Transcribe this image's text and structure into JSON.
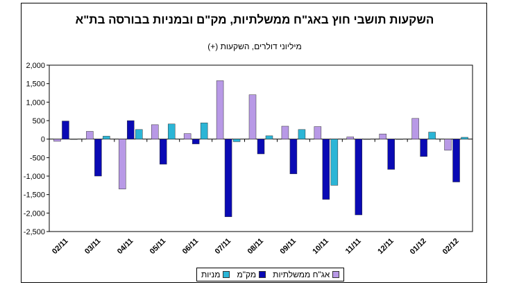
{
  "chart_data": {
    "type": "bar",
    "title": "השקעות תושבי חוץ באג\"ח ממשלתיות, מק\"ם ובמניות בבורסה בת\"א",
    "subtitle": "מיליוני דולרים, השקעות (+)",
    "categories": [
      "02/11",
      "03/11",
      "04/11",
      "05/11",
      "06/11",
      "07/11",
      "08/11",
      "09/11",
      "10/11",
      "11/11",
      "12/11",
      "01/12",
      "02/12"
    ],
    "series": [
      {
        "name": "אג\"ח ממשלתיות",
        "color": "#b899e6",
        "values": [
          -60,
          210,
          -1350,
          390,
          150,
          1580,
          1200,
          350,
          340,
          60,
          140,
          560,
          -300
        ]
      },
      {
        "name": "מק\"מ",
        "color": "#0a0ab4",
        "values": [
          490,
          -1000,
          500,
          -680,
          -130,
          -2100,
          -400,
          -940,
          -1630,
          -2050,
          -820,
          -470,
          -1160
        ]
      },
      {
        "name": "מניות",
        "color": "#2bb5d6",
        "values": [
          0,
          80,
          260,
          410,
          440,
          -70,
          90,
          260,
          -1250,
          0,
          0,
          190,
          50
        ]
      }
    ],
    "ylim": [
      -2500,
      2000
    ],
    "yticks": [
      "2,000",
      "1,500",
      "1,000",
      "500",
      "0",
      "-500",
      "-1,000",
      "-1,500",
      "-2,000",
      "-2,500"
    ],
    "grid": false,
    "legend_position": "bottom"
  }
}
